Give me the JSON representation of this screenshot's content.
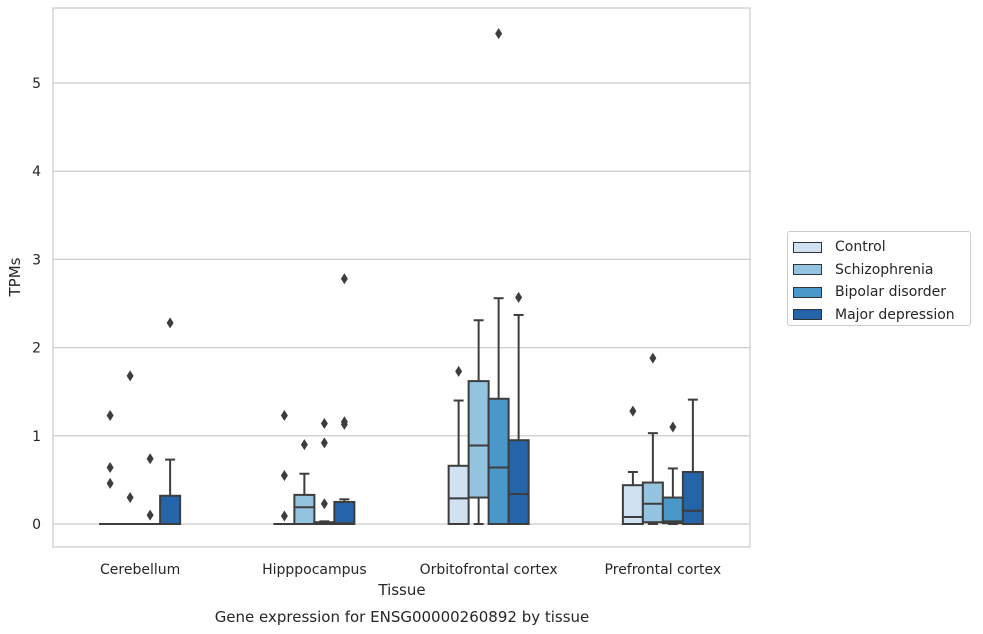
{
  "chart_data": {
    "type": "box",
    "title": "Gene expression for ENSG00000260892 by tissue",
    "xlabel": "Tissue",
    "ylabel": "TPMs",
    "ylim": [
      -0.27,
      5.85
    ],
    "yticks": [
      0,
      1,
      2,
      3,
      4,
      5
    ],
    "grid": "horizontal",
    "legend_placement": "right",
    "categories": [
      "Cerebellum",
      "Hipppocampus",
      "Orbitofrontal cortex",
      "Prefrontal cortex"
    ],
    "series": [
      {
        "name": "Control",
        "color": "#d0e1f2",
        "boxes": [
          {
            "min": 0,
            "q1": 0,
            "median": 0,
            "q3": 0,
            "max": 0,
            "outliers": [
              1.23,
              0.64,
              0.46
            ]
          },
          {
            "min": 0,
            "q1": 0,
            "median": 0,
            "q3": 0,
            "max": 0,
            "outliers": [
              1.23,
              0.55,
              0.09
            ]
          },
          {
            "min": 0,
            "q1": 0,
            "median": 0.29,
            "q3": 0.66,
            "max": 1.4,
            "outliers": [
              1.73
            ]
          },
          {
            "min": 0,
            "q1": 0,
            "median": 0.08,
            "q3": 0.44,
            "max": 0.59,
            "outliers": [
              1.28
            ]
          }
        ]
      },
      {
        "name": "Schizophrenia",
        "color": "#94c4df",
        "boxes": [
          {
            "min": 0,
            "q1": 0,
            "median": 0,
            "q3": 0,
            "max": 0,
            "outliers": [
              1.68,
              0.3
            ]
          },
          {
            "min": 0,
            "q1": 0,
            "median": 0.19,
            "q3": 0.33,
            "max": 0.57,
            "outliers": [
              0.9
            ]
          },
          {
            "min": 0,
            "q1": 0.3,
            "median": 0.89,
            "q3": 1.62,
            "max": 2.31,
            "outliers": []
          },
          {
            "min": 0,
            "q1": 0.02,
            "median": 0.23,
            "q3": 0.47,
            "max": 1.03,
            "outliers": [
              1.88
            ]
          }
        ]
      },
      {
        "name": "Bipolar disorder",
        "color": "#4a98c9",
        "boxes": [
          {
            "min": 0,
            "q1": 0,
            "median": 0,
            "q3": 0,
            "max": 0,
            "outliers": [
              0.74,
              0.1
            ]
          },
          {
            "min": 0,
            "q1": 0,
            "median": 0.01,
            "q3": 0.02,
            "max": 0.03,
            "outliers": [
              1.14,
              0.92,
              0.23
            ]
          },
          {
            "min": 0,
            "q1": 0,
            "median": 0.64,
            "q3": 1.42,
            "max": 2.56,
            "outliers": [
              5.56
            ]
          },
          {
            "min": 0,
            "q1": 0.01,
            "median": 0.03,
            "q3": 0.3,
            "max": 0.63,
            "outliers": [
              1.1
            ]
          }
        ]
      },
      {
        "name": "Major depression",
        "color": "#2464a8",
        "boxes": [
          {
            "min": 0,
            "q1": 0,
            "median": 0,
            "q3": 0.32,
            "max": 0.73,
            "outliers": [
              2.28
            ]
          },
          {
            "min": 0,
            "q1": 0,
            "median": 0.01,
            "q3": 0.25,
            "max": 0.28,
            "outliers": [
              2.78,
              1.16,
              1.13
            ]
          },
          {
            "min": 0,
            "q1": 0,
            "median": 0.34,
            "q3": 0.95,
            "max": 2.37,
            "outliers": [
              2.57
            ]
          },
          {
            "min": 0,
            "q1": 0,
            "median": 0.15,
            "q3": 0.59,
            "max": 1.41,
            "outliers": []
          }
        ]
      }
    ]
  }
}
